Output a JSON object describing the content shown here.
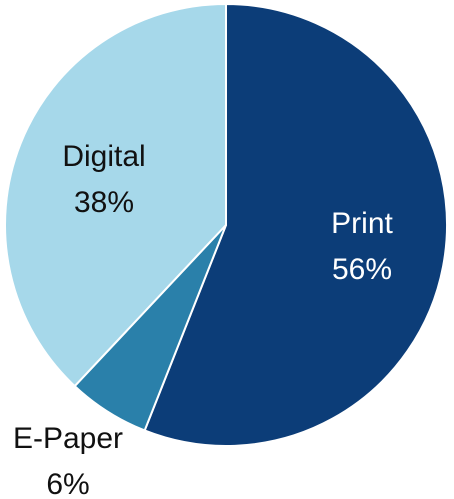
{
  "chart_data": {
    "type": "pie",
    "title": "",
    "slices": [
      {
        "label": "Print",
        "value": 56,
        "display": "56%",
        "color": "#0c3d78",
        "label_color": "#ffffff"
      },
      {
        "label": "E-Paper",
        "value": 6,
        "display": "6%",
        "color": "#2a80aa",
        "label_color": "#111111"
      },
      {
        "label": "Digital",
        "value": 38,
        "display": "38%",
        "color": "#a6d8ea",
        "label_color": "#111111"
      }
    ],
    "legend": "none"
  }
}
